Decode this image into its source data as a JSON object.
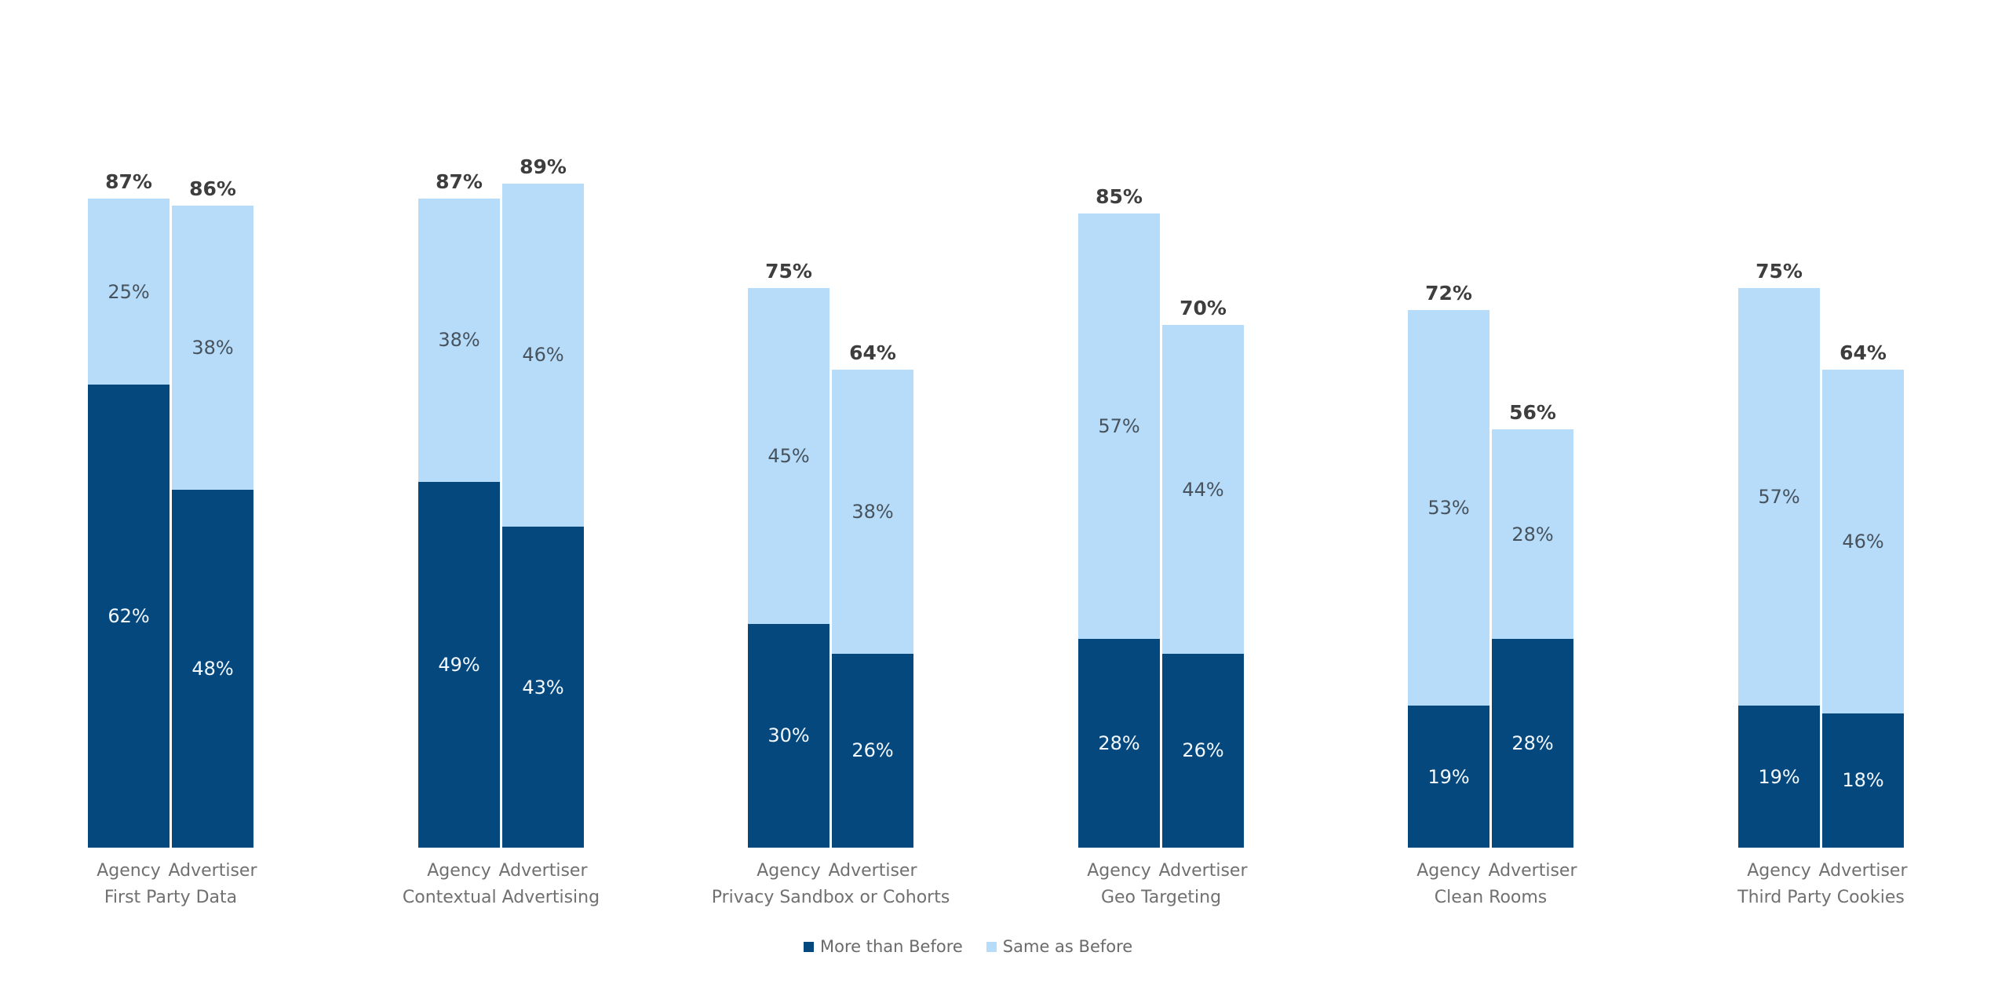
{
  "chart_data": {
    "type": "bar",
    "stacked": true,
    "orientation": "vertical",
    "unit": "%",
    "grid": false,
    "legend_position": "bottom-center",
    "background_color": "#ffffff",
    "bar_categories": [
      "Agency",
      "Advertiser"
    ],
    "series": [
      {
        "name": "More than Before",
        "color": "#04487e"
      },
      {
        "name": "Same as Before",
        "color": "#b6dcfa"
      }
    ],
    "legend": [
      {
        "label": "More than Before",
        "color": "#04487e"
      },
      {
        "label": "Same as Before",
        "color": "#b6dcfa"
      }
    ],
    "value_axis": {
      "min": 0,
      "max": 100,
      "visible": false
    },
    "groups": [
      {
        "label": "First Party Data",
        "bars": [
          {
            "category": "Agency",
            "total": 87,
            "total_label": "87%",
            "more_than_before": 62,
            "more_label": "62%",
            "same_as_before": 25,
            "same_label": "25%"
          },
          {
            "category": "Advertiser",
            "total": 86,
            "total_label": "86%",
            "more_than_before": 48,
            "more_label": "48%",
            "same_as_before": 38,
            "same_label": "38%"
          }
        ]
      },
      {
        "label": "Contextual Advertising",
        "bars": [
          {
            "category": "Agency",
            "total": 87,
            "total_label": "87%",
            "more_than_before": 49,
            "more_label": "49%",
            "same_as_before": 38,
            "same_label": "38%"
          },
          {
            "category": "Advertiser",
            "total": 89,
            "total_label": "89%",
            "more_than_before": 43,
            "more_label": "43%",
            "same_as_before": 46,
            "same_label": "46%"
          }
        ]
      },
      {
        "label": "Privacy Sandbox or Cohorts",
        "bars": [
          {
            "category": "Agency",
            "total": 75,
            "total_label": "75%",
            "more_than_before": 30,
            "more_label": "30%",
            "same_as_before": 45,
            "same_label": "45%"
          },
          {
            "category": "Advertiser",
            "total": 64,
            "total_label": "64%",
            "more_than_before": 26,
            "more_label": "26%",
            "same_as_before": 38,
            "same_label": "38%"
          }
        ]
      },
      {
        "label": "Geo Targeting",
        "bars": [
          {
            "category": "Agency",
            "total": 85,
            "total_label": "85%",
            "more_than_before": 28,
            "more_label": "28%",
            "same_as_before": 57,
            "same_label": "57%"
          },
          {
            "category": "Advertiser",
            "total": 70,
            "total_label": "70%",
            "more_than_before": 26,
            "more_label": "26%",
            "same_as_before": 44,
            "same_label": "44%"
          }
        ]
      },
      {
        "label": "Clean Rooms",
        "bars": [
          {
            "category": "Agency",
            "total": 72,
            "total_label": "72%",
            "more_than_before": 19,
            "more_label": "19%",
            "same_as_before": 53,
            "same_label": "53%"
          },
          {
            "category": "Advertiser",
            "total": 56,
            "total_label": "56%",
            "more_than_before": 28,
            "more_label": "28%",
            "same_as_before": 28,
            "same_label": "28%"
          }
        ]
      },
      {
        "label": "Third Party Cookies",
        "bars": [
          {
            "category": "Agency",
            "total": 75,
            "total_label": "75%",
            "more_than_before": 19,
            "more_label": "19%",
            "same_as_before": 57,
            "same_label": "57%"
          },
          {
            "category": "Advertiser",
            "total": 64,
            "total_label": "64%",
            "more_than_before": 18,
            "more_label": "18%",
            "same_as_before": 46,
            "same_label": "46%"
          }
        ]
      }
    ]
  }
}
